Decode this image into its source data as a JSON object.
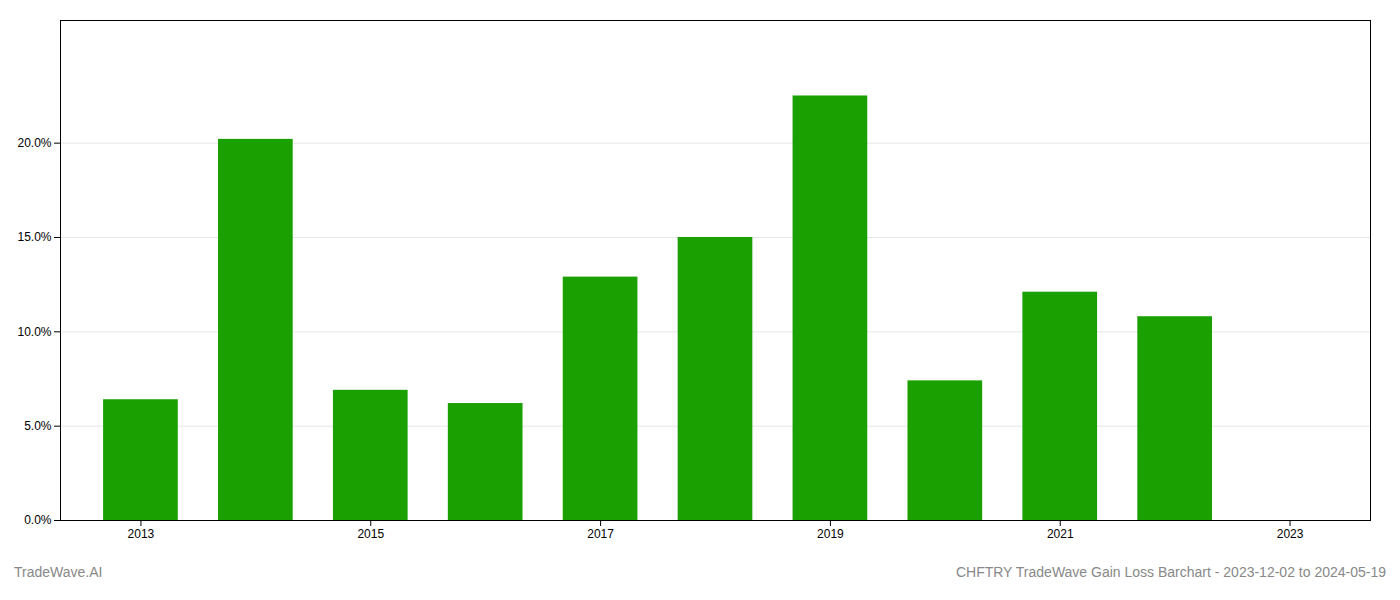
{
  "chart_data": {
    "type": "bar",
    "x": [
      2013,
      2014,
      2015,
      2016,
      2017,
      2018,
      2019,
      2020,
      2021,
      2022,
      2023
    ],
    "values": [
      0.064,
      0.202,
      0.069,
      0.062,
      0.129,
      0.15,
      0.225,
      0.074,
      0.121,
      0.108,
      0.0
    ],
    "color": "#1aa000",
    "xlim": [
      2012.3,
      2023.7
    ],
    "xticks": [
      2013,
      2015,
      2017,
      2019,
      2021,
      2023
    ],
    "ylim": [
      0,
      0.265
    ],
    "yticks": [
      {
        "value": 0.0,
        "label": "0.0%"
      },
      {
        "value": 0.05,
        "label": "5.0%"
      },
      {
        "value": 0.1,
        "label": "10.0%"
      },
      {
        "value": 0.15,
        "label": "15.0%"
      },
      {
        "value": 0.2,
        "label": "20.0%"
      }
    ],
    "grid": true,
    "annotations": [
      "TradeWave.AI",
      "CHFTRY TradeWave Gain Loss Barchart - 2023-12-02 to 2024-05-19"
    ]
  }
}
